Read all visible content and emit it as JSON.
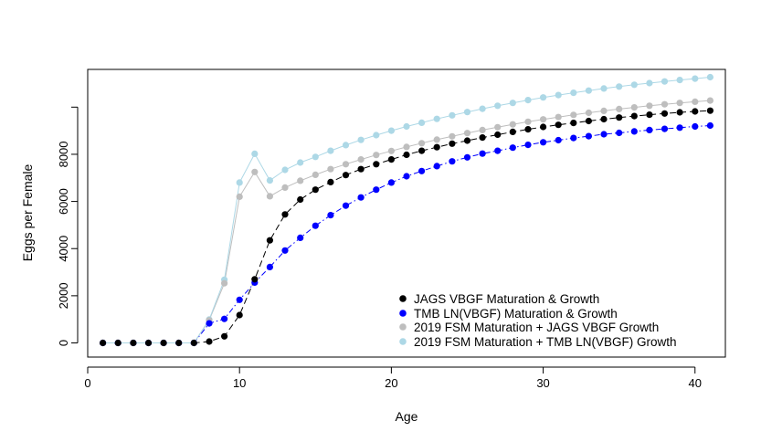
{
  "chart_data": {
    "type": "scatter",
    "title": "",
    "xlabel": "Age",
    "ylabel": "Eggs per Female",
    "xlim": [
      0,
      42
    ],
    "ylim": [
      -600,
      11600
    ],
    "xticks": [
      0,
      10,
      20,
      30,
      40
    ],
    "xtick_labels": [
      "0",
      "10",
      "20",
      "30",
      "40"
    ],
    "yticks": [
      0,
      2000,
      4000,
      6000,
      8000,
      10000
    ],
    "ytick_labels": [
      "0",
      "2000",
      "4000",
      "6000",
      "8000",
      ""
    ],
    "grid": false,
    "legend_position": "bottom-right",
    "x": [
      1,
      2,
      3,
      4,
      5,
      6,
      7,
      8,
      9,
      10,
      11,
      12,
      13,
      14,
      15,
      16,
      17,
      18,
      19,
      20,
      21,
      22,
      23,
      24,
      25,
      26,
      27,
      28,
      29,
      30,
      31,
      32,
      33,
      34,
      35,
      36,
      37,
      38,
      39,
      40,
      41
    ],
    "series": [
      {
        "name": "JAGS VBGF Maturation & Growth",
        "color": "#000000",
        "line_style": "longdash",
        "values": [
          0,
          0,
          0,
          0,
          0,
          0,
          0,
          60,
          280,
          1180,
          2700,
          4350,
          5450,
          6080,
          6500,
          6820,
          7120,
          7370,
          7580,
          7780,
          7980,
          8150,
          8300,
          8450,
          8580,
          8710,
          8830,
          8950,
          9060,
          9160,
          9250,
          9330,
          9410,
          9490,
          9560,
          9620,
          9680,
          9730,
          9780,
          9820,
          9850
        ]
      },
      {
        "name": "TMB LN(VBGF) Maturation & Growth",
        "color": "#0000ff",
        "line_style": "dotdash",
        "values": [
          0,
          0,
          0,
          0,
          0,
          0,
          0,
          830,
          1020,
          1830,
          2560,
          3220,
          3920,
          4460,
          4970,
          5420,
          5820,
          6170,
          6500,
          6800,
          7070,
          7290,
          7500,
          7700,
          7870,
          8030,
          8150,
          8280,
          8400,
          8510,
          8600,
          8690,
          8770,
          8850,
          8910,
          8970,
          9030,
          9080,
          9130,
          9180,
          9220
        ]
      },
      {
        "name": "2019 FSM Maturation + JAGS VBGF Growth",
        "color": "#bebebe",
        "line_style": "solid",
        "values": [
          0,
          0,
          0,
          0,
          0,
          0,
          0,
          960,
          2530,
          6200,
          7250,
          6220,
          6590,
          6880,
          7130,
          7370,
          7580,
          7780,
          7970,
          8140,
          8310,
          8470,
          8620,
          8760,
          8900,
          9030,
          9150,
          9270,
          9380,
          9480,
          9580,
          9670,
          9760,
          9840,
          9920,
          9990,
          10060,
          10120,
          10180,
          10230,
          10280
        ]
      },
      {
        "name": "2019 FSM Maturation + TMB LN(VBGF) Growth",
        "color": "#add8e6",
        "line_style": "solid",
        "values": [
          0,
          0,
          0,
          0,
          0,
          0,
          0,
          990,
          2680,
          6800,
          8020,
          6890,
          7340,
          7650,
          7890,
          8150,
          8390,
          8610,
          8810,
          9000,
          9180,
          9340,
          9500,
          9650,
          9790,
          9930,
          10060,
          10180,
          10300,
          10410,
          10510,
          10610,
          10700,
          10790,
          10870,
          10950,
          11020,
          11090,
          11150,
          11210,
          11270
        ]
      }
    ]
  }
}
